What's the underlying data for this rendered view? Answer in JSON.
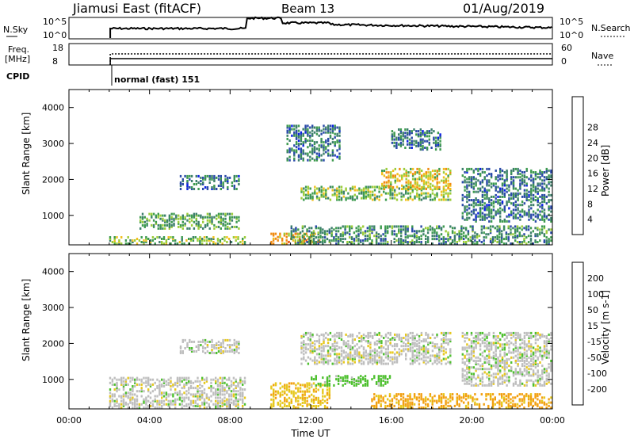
{
  "header": {
    "station": "Jiamusi East (fitACF)",
    "beam": "Beam 13",
    "date": "01/Aug/2019"
  },
  "noise_panel": {
    "left_label": "N.Sky",
    "left_ticks": [
      "10^5",
      "10^0"
    ],
    "right_ticks": [
      "10^5",
      "10^0"
    ],
    "right_label": "N.Search"
  },
  "freq_panel": {
    "left_label_line1": "Freq.",
    "left_label_line2": "[MHz]",
    "left_ticks": [
      "18",
      "8"
    ],
    "right_ticks": [
      "60",
      "0"
    ],
    "right_label": "Nave"
  },
  "cpid": {
    "label": "CPID",
    "value": "normal (fast) 151"
  },
  "colors": {
    "power_scale": [
      "#0a1ee6",
      "#2a4aa8",
      "#3d7f6b",
      "#3e9b4f",
      "#9ccd3a",
      "#f0c01e",
      "#f08a10",
      "#e84a08",
      "#e01008"
    ],
    "velocity_scale": [
      "#1a3fcc",
      "#2a6a9a",
      "#3d8f5a",
      "#4fc030",
      "#bebebe",
      "#e6c81e",
      "#f2a010",
      "#ea6a0a",
      "#e01810"
    ],
    "axis": "#000000"
  },
  "chart_data": [
    {
      "type": "heatmap",
      "title": "Power [dB]",
      "xlabel": "Time UT",
      "ylabel": "Slant Range [km]",
      "x_ticks": [
        "00:00",
        "04:00",
        "08:00",
        "12:00",
        "16:00",
        "20:00",
        "00:00"
      ],
      "x_range_hours": [
        0,
        24
      ],
      "y_ticks": [
        1000,
        2000,
        3000,
        4000
      ],
      "ylim": [
        180,
        4500
      ],
      "colorbar_label": "Power [dB]",
      "colorbar_ticks": [
        4,
        8,
        12,
        16,
        20,
        24,
        28
      ],
      "colorbar_range": [
        0,
        30
      ],
      "echo_regions": [
        {
          "t_start": 2.0,
          "t_end": 8.8,
          "r_min": 180,
          "r_max": 400,
          "value": 14
        },
        {
          "t_start": 3.5,
          "t_end": 8.5,
          "r_min": 600,
          "r_max": 1050,
          "value": 12
        },
        {
          "t_start": 5.5,
          "t_end": 8.5,
          "r_min": 1700,
          "r_max": 2100,
          "value": 8
        },
        {
          "t_start": 10.0,
          "t_end": 12.5,
          "r_min": 180,
          "r_max": 500,
          "value": 20
        },
        {
          "t_start": 10.8,
          "t_end": 13.5,
          "r_min": 2500,
          "r_max": 3500,
          "value": 8
        },
        {
          "t_start": 11.0,
          "t_end": 24.0,
          "r_min": 180,
          "r_max": 700,
          "value": 10
        },
        {
          "t_start": 11.5,
          "t_end": 19.0,
          "r_min": 1400,
          "r_max": 1800,
          "value": 14
        },
        {
          "t_start": 15.5,
          "t_end": 19.0,
          "r_min": 1700,
          "r_max": 2300,
          "value": 18
        },
        {
          "t_start": 16.0,
          "t_end": 18.5,
          "r_min": 2800,
          "r_max": 3400,
          "value": 8
        },
        {
          "t_start": 19.5,
          "t_end": 24.0,
          "r_min": 800,
          "r_max": 2300,
          "value": 8
        }
      ]
    },
    {
      "type": "heatmap",
      "title": "Velocity [m s-1]",
      "xlabel": "Time UT",
      "ylabel": "Slant Range [km]",
      "x_ticks": [
        "00:00",
        "04:00",
        "08:00",
        "12:00",
        "16:00",
        "20:00",
        "00:00"
      ],
      "x_range_hours": [
        0,
        24
      ],
      "y_ticks": [
        1000,
        2000,
        3000,
        4000
      ],
      "ylim": [
        180,
        4500
      ],
      "colorbar_label": "Velocity [m s-1]",
      "colorbar_ticks": [
        200,
        100,
        50,
        15,
        -15,
        -50,
        -100,
        -200
      ],
      "echo_regions": [
        {
          "t_start": 2.0,
          "t_end": 8.8,
          "r_min": 180,
          "r_max": 1050,
          "value": 0
        },
        {
          "t_start": 5.5,
          "t_end": 8.5,
          "r_min": 1700,
          "r_max": 2100,
          "value": 0
        },
        {
          "t_start": 10.0,
          "t_end": 13.0,
          "r_min": 180,
          "r_max": 900,
          "value": -40
        },
        {
          "t_start": 11.5,
          "t_end": 19.0,
          "r_min": 1400,
          "r_max": 2300,
          "value": 0
        },
        {
          "t_start": 12.0,
          "t_end": 16.0,
          "r_min": 800,
          "r_max": 1100,
          "value": 30
        },
        {
          "t_start": 15.0,
          "t_end": 24.0,
          "r_min": 180,
          "r_max": 600,
          "value": -60
        },
        {
          "t_start": 19.5,
          "t_end": 24.0,
          "r_min": 800,
          "r_max": 2300,
          "value": 0
        }
      ]
    }
  ]
}
